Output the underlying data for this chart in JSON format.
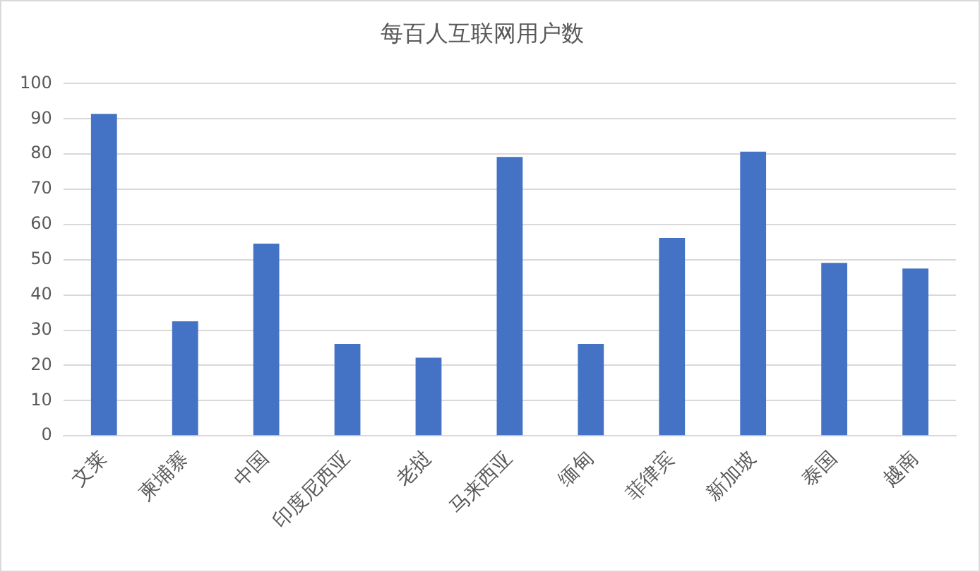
{
  "chart_data": {
    "type": "bar",
    "title": "每百人互联网用户数",
    "categories": [
      "文莱",
      "柬埔寨",
      "中国",
      "印度尼西亚",
      "老挝",
      "马来西亚",
      "缅甸",
      "菲律宾",
      "新加坡",
      "泰国",
      "越南"
    ],
    "values": [
      91.4,
      32.5,
      54.6,
      26.1,
      22.2,
      79.2,
      26.1,
      56.2,
      80.7,
      49.1,
      47.5
    ],
    "color": "#4472c4",
    "ylim": [
      0,
      100
    ],
    "yticks": [
      0,
      10,
      20,
      30,
      40,
      50,
      60,
      70,
      80,
      90,
      100
    ],
    "grid": "y"
  }
}
